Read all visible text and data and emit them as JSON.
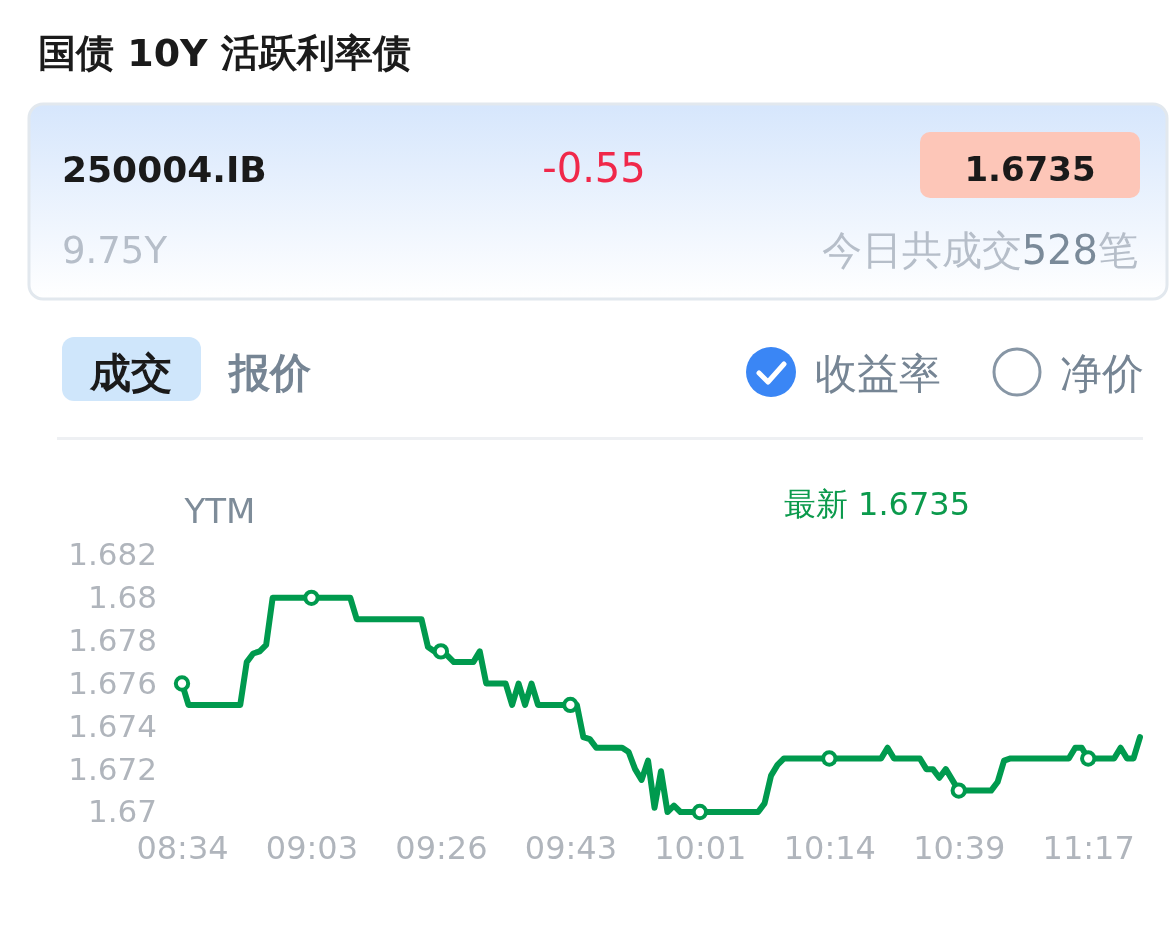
{
  "chart_data": {
    "type": "line",
    "title": "国债 10Y 活跃利率债",
    "ylabel": "YTM",
    "annotations": [
      "250004.IB",
      "-0.55",
      "1.6735",
      "9.75Y",
      "今日共成交528笔",
      "成交",
      "报价",
      "收益率",
      "净价",
      "最新 1.6735"
    ],
    "categories": [
      "08:34",
      null,
      null,
      null,
      null,
      null,
      null,
      null,
      null,
      null,
      null,
      null,
      null,
      null,
      null,
      null,
      null,
      null,
      null,
      null,
      "09:03",
      null,
      null,
      null,
      null,
      null,
      null,
      null,
      null,
      null,
      null,
      null,
      null,
      null,
      null,
      null,
      null,
      null,
      null,
      null,
      "09:26",
      null,
      null,
      null,
      null,
      null,
      null,
      null,
      null,
      null,
      null,
      null,
      null,
      null,
      null,
      null,
      null,
      null,
      null,
      null,
      "09:43",
      null,
      null,
      null,
      null,
      null,
      null,
      null,
      null,
      null,
      null,
      null,
      null,
      null,
      null,
      null,
      null,
      null,
      null,
      null,
      "10:01",
      null,
      null,
      null,
      null,
      null,
      null,
      null,
      null,
      null,
      null,
      null,
      null,
      null,
      null,
      null,
      null,
      null,
      null,
      null,
      "10:14",
      null,
      null,
      null,
      null,
      null,
      null,
      null,
      null,
      null,
      null,
      null,
      null,
      null,
      null,
      null,
      null,
      null,
      null,
      null,
      "10:39",
      null,
      null,
      null,
      null,
      null,
      null,
      null,
      null,
      null,
      null,
      null,
      null,
      null,
      null,
      null,
      null,
      null,
      null,
      null,
      "11:17",
      null,
      null,
      null,
      null,
      null,
      null,
      null,
      null
    ],
    "series": [
      {
        "color": "#009a4e",
        "values": [
          1.676,
          1.675,
          1.675,
          1.675,
          1.675,
          1.675,
          1.675,
          1.675,
          1.675,
          1.675,
          1.677,
          1.6774,
          1.6775,
          1.6778,
          1.68,
          1.68,
          1.68,
          1.68,
          1.68,
          1.68,
          1.68,
          1.68,
          1.68,
          1.68,
          1.68,
          1.68,
          1.68,
          1.679,
          1.679,
          1.679,
          1.679,
          1.679,
          1.679,
          1.679,
          1.679,
          1.679,
          1.679,
          1.679,
          1.6777,
          1.6775,
          1.6775,
          1.6773,
          1.677,
          1.677,
          1.677,
          1.677,
          1.6775,
          1.676,
          1.676,
          1.676,
          1.676,
          1.675,
          1.676,
          1.675,
          1.676,
          1.675,
          1.675,
          1.675,
          1.675,
          1.675,
          1.675,
          1.675,
          1.6735,
          1.6734,
          1.673,
          1.673,
          1.673,
          1.673,
          1.673,
          1.6728,
          1.672,
          1.6715,
          1.6724,
          1.6702,
          1.6719,
          1.67,
          1.6703,
          1.67,
          1.67,
          1.67,
          1.67,
          1.67,
          1.67,
          1.67,
          1.67,
          1.67,
          1.67,
          1.67,
          1.67,
          1.67,
          1.6704,
          1.6717,
          1.6722,
          1.6725,
          1.6725,
          1.6725,
          1.6725,
          1.6725,
          1.6725,
          1.6725,
          1.6725,
          1.6725,
          1.6725,
          1.6725,
          1.6725,
          1.6725,
          1.6725,
          1.6725,
          1.6725,
          1.673,
          1.6725,
          1.6725,
          1.6725,
          1.6725,
          1.6725,
          1.672,
          1.672,
          1.6716,
          1.672,
          1.6715,
          1.671,
          1.671,
          1.671,
          1.671,
          1.671,
          1.671,
          1.6714,
          1.6724,
          1.6725,
          1.6725,
          1.6725,
          1.6725,
          1.6725,
          1.6725,
          1.6725,
          1.6725,
          1.6725,
          1.6725,
          1.673,
          1.673,
          1.6725,
          1.6725,
          1.6725,
          1.6725,
          1.6725,
          1.673,
          1.6725,
          1.6725,
          1.6735
        ]
      },
      {
        "type": "scatter",
        "color": "#009a4e",
        "marker": "circle",
        "values": [
          1.676,
          null,
          null,
          null,
          null,
          null,
          null,
          null,
          null,
          null,
          null,
          null,
          null,
          null,
          null,
          null,
          null,
          null,
          null,
          null,
          1.68,
          null,
          null,
          null,
          null,
          null,
          null,
          null,
          null,
          null,
          null,
          null,
          null,
          null,
          null,
          null,
          null,
          null,
          null,
          null,
          1.6775,
          null,
          null,
          null,
          null,
          null,
          null,
          null,
          null,
          null,
          null,
          null,
          null,
          null,
          null,
          null,
          null,
          null,
          null,
          null,
          1.675,
          null,
          null,
          null,
          null,
          null,
          null,
          null,
          null,
          null,
          null,
          null,
          null,
          null,
          null,
          null,
          null,
          null,
          null,
          null,
          1.67,
          null,
          null,
          null,
          null,
          null,
          null,
          null,
          null,
          null,
          null,
          null,
          null,
          null,
          null,
          null,
          null,
          null,
          null,
          null,
          1.6725,
          null,
          null,
          null,
          null,
          null,
          null,
          null,
          null,
          null,
          null,
          null,
          null,
          null,
          null,
          null,
          null,
          null,
          null,
          null,
          1.671,
          null,
          null,
          null,
          null,
          null,
          null,
          null,
          null,
          null,
          null,
          null,
          null,
          null,
          null,
          null,
          null,
          null,
          null,
          null,
          1.6725,
          null,
          null,
          null,
          null,
          null,
          null,
          null,
          null
        ]
      }
    ],
    "ylim": [
      1.67,
      1.682
    ],
    "yticks": [
      1.682,
      1.68,
      1.678,
      1.676,
      1.674,
      1.672,
      1.67
    ]
  }
}
